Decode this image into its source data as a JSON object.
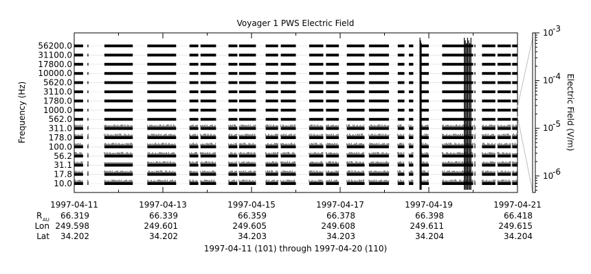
{
  "chart_data": {
    "type": "heatmap",
    "title": "Voyager 1 PWS Electric Field",
    "ylabel": "Frequency (Hz)",
    "colorbar_label": "Electric Field (V/m)",
    "colorbar_scale": "log",
    "colorbar_range": [
      4.5e-07,
      0.001
    ],
    "colorbar_ticks": [
      {
        "value": 0.001,
        "base": "10",
        "exp": "-3"
      },
      {
        "value": 0.0001,
        "base": "10",
        "exp": "-4"
      },
      {
        "value": 1e-05,
        "base": "10",
        "exp": "-5"
      },
      {
        "value": 1e-06,
        "base": "10",
        "exp": "-6"
      }
    ],
    "frequency_channels": [
      "56200.0",
      "31100.0",
      "17800.0",
      "10000.0",
      "5620.0",
      "3110.0",
      "1780.0",
      "1000.0",
      "562.0",
      "311.0",
      "178.0",
      "100.0",
      "56.2",
      "31.1",
      "17.8",
      "10.0"
    ],
    "x_range": [
      "1997-04-11",
      "1997-04-21"
    ],
    "x_ticks": [
      "1997-04-11",
      "1997-04-13",
      "1997-04-15",
      "1997-04-17",
      "1997-04-19",
      "1997-04-21"
    ],
    "x_minor_ticks_per_major": 2,
    "ephemeris_labels": {
      "rau_main": "R",
      "rau_sub": "AU",
      "lon": "Lon",
      "lat": "Lat"
    },
    "ephemeris": [
      {
        "rau": "66.319",
        "lon": "249.598",
        "lat": "34.202"
      },
      {
        "rau": "66.339",
        "lon": "249.601",
        "lat": "34.202"
      },
      {
        "rau": "66.359",
        "lon": "249.605",
        "lat": "34.203"
      },
      {
        "rau": "66.378",
        "lon": "249.608",
        "lat": "34.203"
      },
      {
        "rau": "66.398",
        "lon": "249.611",
        "lat": "34.204"
      },
      {
        "rau": "66.418",
        "lon": "249.615",
        "lat": "34.204"
      }
    ],
    "date_range_caption": "1997-04-11 (101) through 1997-04-20 (110)",
    "data_segments_days": [
      [
        0.0,
        0.2
      ],
      [
        0.3,
        0.32
      ],
      [
        0.68,
        1.32
      ],
      [
        1.65,
        2.3
      ],
      [
        2.6,
        2.8
      ],
      [
        2.85,
        3.2
      ],
      [
        3.48,
        3.68
      ],
      [
        3.72,
        4.1
      ],
      [
        4.32,
        4.6
      ],
      [
        4.66,
        5.0
      ],
      [
        5.3,
        5.62
      ],
      [
        5.68,
        5.97
      ],
      [
        6.15,
        6.55
      ],
      [
        6.65,
        7.1
      ],
      [
        7.3,
        7.45
      ],
      [
        7.55,
        7.65
      ],
      [
        7.83,
        8.0
      ],
      [
        8.3,
        9.0
      ],
      [
        9.03,
        9.05
      ],
      [
        9.2,
        9.5
      ],
      [
        9.55,
        9.85
      ],
      [
        9.88,
        10.0
      ]
    ],
    "bursts": [
      {
        "start_day": 7.8,
        "end_day": 7.83,
        "top_channel": "56200.0"
      },
      {
        "start_day": 8.8,
        "end_day": 8.95,
        "top_channel": "56200.0"
      }
    ],
    "legend": "none"
  }
}
